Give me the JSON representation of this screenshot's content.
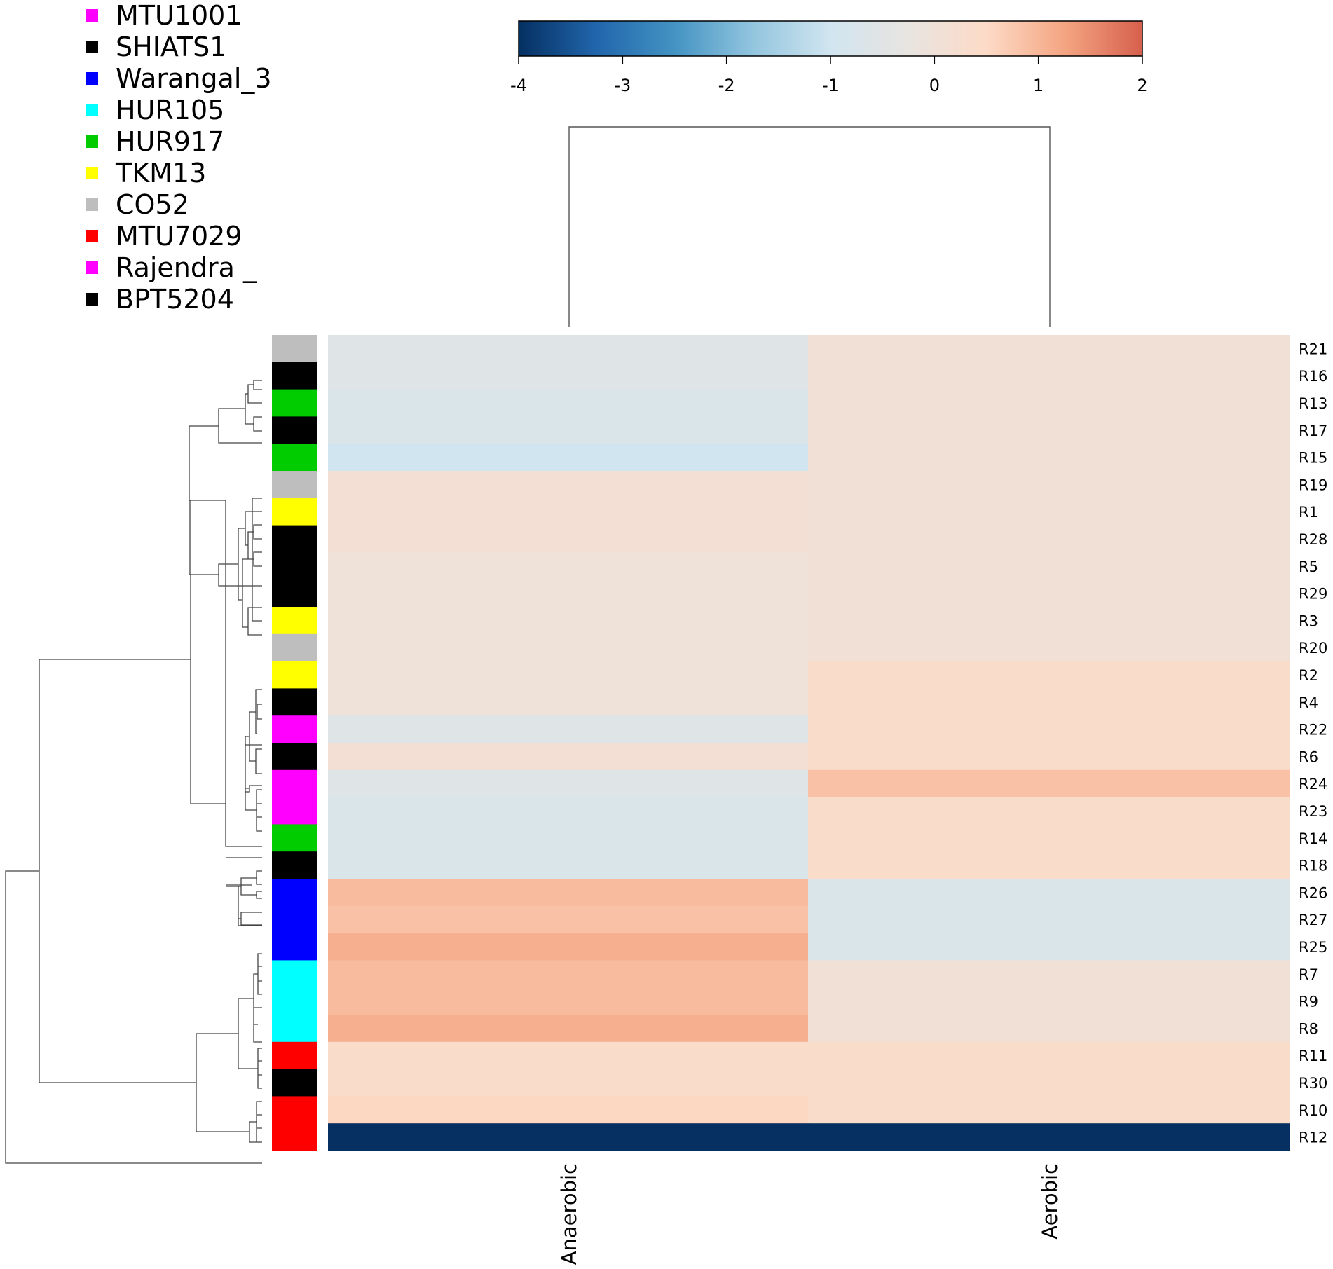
{
  "legend": [
    {
      "label": "MTU1001",
      "color": "#ff00ff"
    },
    {
      "label": "SHIATS1",
      "color": "#000000"
    },
    {
      "label": "Warangal_3",
      "color": "#0000ff"
    },
    {
      "label": "HUR105",
      "color": "#00ffff"
    },
    {
      "label": "HUR917",
      "color": "#00cc00"
    },
    {
      "label": "TKM13",
      "color": "#ffff00"
    },
    {
      "label": "CO52",
      "color": "#bebebe"
    },
    {
      "label": "MTU7029",
      "color": "#ff0000"
    },
    {
      "label": "Rajendra _",
      "color": "#ff00ff"
    },
    {
      "label": "BPT5204",
      "color": "#000000"
    }
  ],
  "chart_data": {
    "type": "heatmap",
    "columns": [
      "Anaerobic",
      "Aerobic"
    ],
    "rows": [
      "R21",
      "R16",
      "R13",
      "R17",
      "R15",
      "R19",
      "R1",
      "R28",
      "R5",
      "R29",
      "R3",
      "R20",
      "R2",
      "R4",
      "R22",
      "R6",
      "R24",
      "R23",
      "R14",
      "R18",
      "R26",
      "R27",
      "R25",
      "R7",
      "R9",
      "R8",
      "R11",
      "R30",
      "R10",
      "R12"
    ],
    "row_annotation": [
      "#bebebe",
      "#000000",
      "#00cc00",
      "#000000",
      "#00cc00",
      "#bebebe",
      "#ffff00",
      "#000000",
      "#000000",
      "#000000",
      "#ffff00",
      "#bebebe",
      "#ffff00",
      "#000000",
      "#ff00ff",
      "#000000",
      "#ff00ff",
      "#ff00ff",
      "#00cc00",
      "#000000",
      "#0000ff",
      "#0000ff",
      "#0000ff",
      "#00ffff",
      "#00ffff",
      "#00ffff",
      "#ff0000",
      "#000000",
      "#ff0000",
      "#ff0000"
    ],
    "values": [
      [
        -0.55,
        0.08
      ],
      [
        -0.55,
        0.08
      ],
      [
        -0.7,
        0.08
      ],
      [
        -0.7,
        0.08
      ],
      [
        -1.0,
        0.08
      ],
      [
        0.15,
        0.08
      ],
      [
        0.15,
        0.08
      ],
      [
        0.15,
        0.08
      ],
      [
        -0.05,
        0.08
      ],
      [
        -0.05,
        0.08
      ],
      [
        -0.05,
        0.08
      ],
      [
        -0.05,
        0.08
      ],
      [
        -0.05,
        0.4
      ],
      [
        -0.05,
        0.4
      ],
      [
        -0.55,
        0.4
      ],
      [
        0.15,
        0.4
      ],
      [
        -0.55,
        0.85
      ],
      [
        -0.7,
        0.4
      ],
      [
        -0.7,
        0.4
      ],
      [
        -0.7,
        0.4
      ],
      [
        0.95,
        -0.7
      ],
      [
        0.85,
        -0.7
      ],
      [
        1.1,
        -0.7
      ],
      [
        0.95,
        0.08
      ],
      [
        0.95,
        0.08
      ],
      [
        1.1,
        0.08
      ],
      [
        0.4,
        0.4
      ],
      [
        0.4,
        0.4
      ],
      [
        0.55,
        0.4
      ],
      [
        -4.0,
        -4.0
      ]
    ],
    "colorbar": {
      "min": -4,
      "max": 2,
      "ticks": [
        "-4",
        "-3",
        "-2",
        "-1",
        "0",
        "1",
        "2"
      ],
      "colors": [
        "#053061",
        "#2166ac",
        "#4393c3",
        "#92c5de",
        "#d1e5f0",
        "#e8e4e0",
        "#fddbc7",
        "#f4a582",
        "#d6604d"
      ]
    },
    "row_dendrogram": true,
    "column_dendrogram": true
  }
}
